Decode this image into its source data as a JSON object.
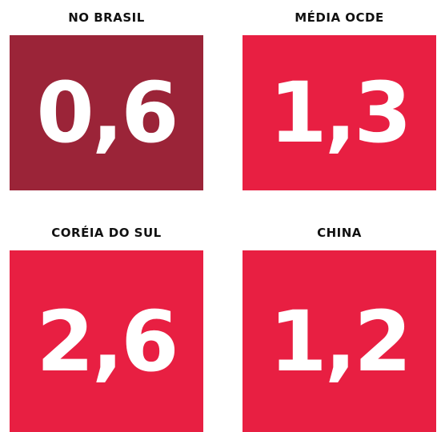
{
  "tiles": [
    {
      "label": "NO BRASIL",
      "value": "0,6",
      "color": "#9b2438"
    },
    {
      "label": "MÉDIA OCDE",
      "value": "1,3",
      "color": "#e81f42"
    },
    {
      "label": "CORÉIA DO SUL",
      "value": "2,6",
      "color": "#e81f42"
    },
    {
      "label": "CHINA",
      "value": "1,2",
      "color": "#e81f42"
    }
  ]
}
